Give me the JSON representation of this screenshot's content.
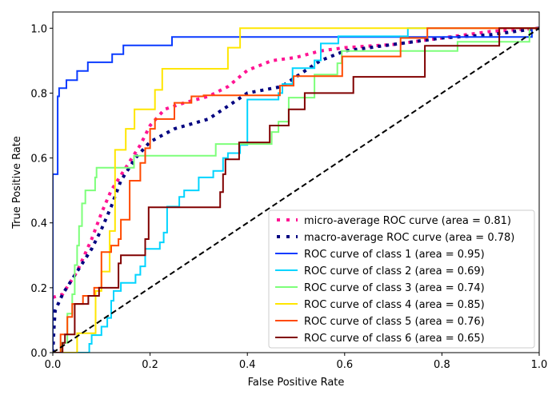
{
  "chart_data": {
    "type": "line",
    "title": "",
    "xlabel": "False Positive Rate",
    "ylabel": "True Positive Rate",
    "xlim": [
      0.0,
      1.0
    ],
    "ylim": [
      0.0,
      1.05
    ],
    "xticks": [
      "0.0",
      "0.2",
      "0.4",
      "0.6",
      "0.8",
      "1.0"
    ],
    "yticks": [
      "0.0",
      "0.2",
      "0.4",
      "0.6",
      "0.8",
      "1.0"
    ],
    "xtick_values": [
      0,
      0.2,
      0.4,
      0.6,
      0.8,
      1.0
    ],
    "ytick_values": [
      0,
      0.2,
      0.4,
      0.6,
      0.8,
      1.0
    ],
    "grid": false,
    "legend_position": "lower-right",
    "chance_line": {
      "name": "chance",
      "x": [
        0,
        1
      ],
      "y": [
        0,
        1
      ],
      "color": "#000000",
      "style": "dashed"
    },
    "series": [
      {
        "name": "micro-average ROC curve (area = 0.81)",
        "area": 0.81,
        "color": "#ff1493",
        "style": "dotted",
        "x": [
          0,
          0.02,
          0.05,
          0.08,
          0.1,
          0.12,
          0.15,
          0.18,
          0.2,
          0.23,
          0.27,
          0.32,
          0.36,
          0.4,
          0.45,
          0.5,
          0.55,
          0.6,
          0.7,
          0.8,
          0.9,
          1
        ],
        "y": [
          0.17,
          0.18,
          0.25,
          0.35,
          0.43,
          0.5,
          0.57,
          0.64,
          0.7,
          0.75,
          0.77,
          0.79,
          0.82,
          0.87,
          0.9,
          0.91,
          0.93,
          0.94,
          0.95,
          0.97,
          0.99,
          1
        ]
      },
      {
        "name": "macro-average ROC curve (area = 0.78)",
        "area": 0.78,
        "color": "#000080",
        "style": "dotted",
        "x": [
          0,
          0.003,
          0.005,
          0.02,
          0.05,
          0.08,
          0.1,
          0.12,
          0.14,
          0.17,
          0.2,
          0.25,
          0.32,
          0.36,
          0.4,
          0.47,
          0.5,
          0.55,
          0.6,
          0.7,
          0.8,
          0.9,
          1
        ],
        "y": [
          0,
          0.09,
          0.13,
          0.18,
          0.25,
          0.32,
          0.38,
          0.45,
          0.53,
          0.6,
          0.65,
          0.69,
          0.72,
          0.76,
          0.8,
          0.82,
          0.85,
          0.9,
          0.93,
          0.95,
          0.97,
          0.98,
          1
        ]
      },
      {
        "name": "ROC curve of class 1 (area = 0.95)",
        "area": 0.95,
        "color": "#0a3bff",
        "style": "solid",
        "x": [
          0,
          0,
          0.01,
          0.01,
          0.013,
          0.013,
          0.028,
          0.028,
          0.05,
          0.05,
          0.072,
          0.072,
          0.122,
          0.122,
          0.145,
          0.145,
          0.245,
          0.245,
          0.985,
          0.985,
          1
        ],
        "y": [
          0,
          0.55,
          0.55,
          0.79,
          0.79,
          0.815,
          0.815,
          0.84,
          0.84,
          0.868,
          0.868,
          0.895,
          0.895,
          0.92,
          0.92,
          0.947,
          0.947,
          0.973,
          0.973,
          1,
          1
        ]
      },
      {
        "name": "ROC curve of class 2 (area = 0.69)",
        "area": 0.69,
        "color": "#00d4ff",
        "style": "solid",
        "x": [
          0,
          0.075,
          0.075,
          0.08,
          0.08,
          0.1,
          0.1,
          0.112,
          0.112,
          0.12,
          0.12,
          0.125,
          0.125,
          0.14,
          0.14,
          0.17,
          0.17,
          0.18,
          0.18,
          0.19,
          0.19,
          0.22,
          0.22,
          0.228,
          0.228,
          0.235,
          0.235,
          0.26,
          0.26,
          0.27,
          0.27,
          0.3,
          0.3,
          0.33,
          0.33,
          0.35,
          0.35,
          0.36,
          0.36,
          0.385,
          0.385,
          0.4,
          0.4,
          0.464,
          0.464,
          0.472,
          0.472,
          0.493,
          0.493,
          0.538,
          0.538,
          0.551,
          0.551,
          0.587,
          0.587,
          0.73,
          0.73,
          1
        ],
        "y": [
          0,
          0,
          0.027,
          0.027,
          0.054,
          0.054,
          0.08,
          0.08,
          0.107,
          0.107,
          0.16,
          0.16,
          0.19,
          0.19,
          0.215,
          0.215,
          0.24,
          0.24,
          0.266,
          0.266,
          0.32,
          0.32,
          0.34,
          0.34,
          0.37,
          0.37,
          0.45,
          0.45,
          0.48,
          0.48,
          0.5,
          0.5,
          0.54,
          0.54,
          0.56,
          0.56,
          0.6,
          0.6,
          0.615,
          0.615,
          0.64,
          0.64,
          0.78,
          0.78,
          0.8,
          0.8,
          0.828,
          0.828,
          0.877,
          0.877,
          0.901,
          0.901,
          0.953,
          0.953,
          0.975,
          0.975,
          1,
          1
        ]
      },
      {
        "name": "ROC curve of class 3 (area = 0.74)",
        "area": 0.74,
        "color": "#7dff7a",
        "style": "solid",
        "x": [
          0,
          0.018,
          0.018,
          0.03,
          0.03,
          0.04,
          0.04,
          0.045,
          0.045,
          0.05,
          0.05,
          0.054,
          0.054,
          0.06,
          0.06,
          0.067,
          0.067,
          0.087,
          0.087,
          0.09,
          0.09,
          0.167,
          0.167,
          0.335,
          0.335,
          0.45,
          0.45,
          0.464,
          0.464,
          0.485,
          0.485,
          0.538,
          0.538,
          0.585,
          0.585,
          0.594,
          0.594,
          0.832,
          0.832,
          0.98,
          0.98,
          1
        ],
        "y": [
          0,
          0,
          0.03,
          0.03,
          0.12,
          0.12,
          0.18,
          0.18,
          0.27,
          0.27,
          0.33,
          0.33,
          0.39,
          0.39,
          0.46,
          0.46,
          0.5,
          0.5,
          0.54,
          0.54,
          0.57,
          0.57,
          0.607,
          0.607,
          0.643,
          0.643,
          0.68,
          0.68,
          0.712,
          0.712,
          0.786,
          0.786,
          0.857,
          0.857,
          0.892,
          0.892,
          0.93,
          0.93,
          0.958,
          0.958,
          1,
          1
        ]
      },
      {
        "name": "ROC curve of class 4 (area = 0.85)",
        "area": 0.85,
        "color": "#ffe600",
        "style": "solid",
        "x": [
          0,
          0.05,
          0.05,
          0.088,
          0.088,
          0.1,
          0.1,
          0.117,
          0.117,
          0.128,
          0.128,
          0.15,
          0.15,
          0.168,
          0.168,
          0.21,
          0.21,
          0.225,
          0.225,
          0.36,
          0.36,
          0.385,
          0.385,
          1
        ],
        "y": [
          0,
          0,
          0.06,
          0.06,
          0.19,
          0.19,
          0.25,
          0.25,
          0.375,
          0.375,
          0.625,
          0.625,
          0.69,
          0.69,
          0.75,
          0.75,
          0.81,
          0.81,
          0.875,
          0.875,
          0.94,
          0.94,
          1,
          1
        ]
      },
      {
        "name": "ROC curve of class 5 (area = 0.76)",
        "area": 0.76,
        "color": "#ff4a00",
        "style": "solid",
        "x": [
          0,
          0.016,
          0.016,
          0.03,
          0.03,
          0.04,
          0.04,
          0.062,
          0.062,
          0.085,
          0.085,
          0.1,
          0.1,
          0.12,
          0.12,
          0.135,
          0.135,
          0.14,
          0.14,
          0.158,
          0.158,
          0.18,
          0.18,
          0.19,
          0.19,
          0.2,
          0.2,
          0.21,
          0.21,
          0.25,
          0.25,
          0.285,
          0.285,
          0.31,
          0.31,
          0.467,
          0.467,
          0.495,
          0.495,
          0.595,
          0.595,
          0.715,
          0.715,
          0.77,
          0.77,
          1
        ],
        "y": [
          0,
          0,
          0.056,
          0.056,
          0.11,
          0.11,
          0.15,
          0.15,
          0.175,
          0.175,
          0.2,
          0.2,
          0.31,
          0.31,
          0.33,
          0.33,
          0.35,
          0.35,
          0.41,
          0.41,
          0.53,
          0.53,
          0.585,
          0.585,
          0.63,
          0.63,
          0.69,
          0.69,
          0.72,
          0.72,
          0.77,
          0.77,
          0.79,
          0.79,
          0.793,
          0.793,
          0.823,
          0.823,
          0.852,
          0.852,
          0.913,
          0.913,
          0.97,
          0.97,
          1,
          1
        ]
      },
      {
        "name": "ROC curve of class 6 (area = 0.65)",
        "area": 0.65,
        "color": "#800000",
        "style": "solid",
        "x": [
          0,
          0.02,
          0.02,
          0.025,
          0.025,
          0.045,
          0.045,
          0.073,
          0.073,
          0.095,
          0.095,
          0.135,
          0.135,
          0.14,
          0.14,
          0.19,
          0.19,
          0.197,
          0.197,
          0.344,
          0.344,
          0.35,
          0.35,
          0.355,
          0.355,
          0.383,
          0.383,
          0.446,
          0.446,
          0.485,
          0.485,
          0.518,
          0.518,
          0.618,
          0.618,
          0.765,
          0.765,
          0.918,
          0.918,
          1
        ],
        "y": [
          0,
          0,
          0.03,
          0.03,
          0.056,
          0.056,
          0.15,
          0.15,
          0.175,
          0.175,
          0.2,
          0.2,
          0.275,
          0.275,
          0.3,
          0.3,
          0.35,
          0.35,
          0.448,
          0.448,
          0.495,
          0.495,
          0.55,
          0.55,
          0.596,
          0.596,
          0.648,
          0.648,
          0.7,
          0.7,
          0.75,
          0.75,
          0.8,
          0.8,
          0.85,
          0.85,
          0.946,
          0.946,
          1,
          1
        ]
      }
    ]
  }
}
